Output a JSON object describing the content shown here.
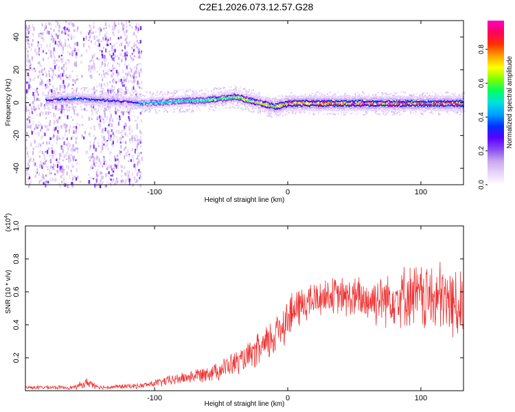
{
  "title": "C2E1.2026.073.12.57.G28",
  "chart_data": [
    {
      "type": "heatmap",
      "xlabel": "Height of straight line (km)",
      "ylabel": "Frequency (Hz)",
      "xlim": [
        -197,
        132
      ],
      "ylim": [
        -50,
        50
      ],
      "xticks": [
        -100,
        0,
        100
      ],
      "yticks": [
        -40,
        -20,
        0,
        20,
        40
      ],
      "colorbar": {
        "label": "Normalized spectral amplitude",
        "range": [
          0,
          0.97
        ],
        "ticks": [
          0.0,
          0.2,
          0.4,
          0.6,
          0.8
        ],
        "tick_labels": [
          "0.0",
          "0.2",
          "0.4",
          "0.6",
          "0.8"
        ],
        "colors": [
          "#ffffff",
          "#e8d4f8",
          "#c9a8f0",
          "#8a4cf0",
          "#5a00ff",
          "#0030ff",
          "#00a0ff",
          "#00e0e0",
          "#00ff60",
          "#80ff00",
          "#ffff00",
          "#ffa000",
          "#ff3000",
          "#ff0060",
          "#ff00c0"
        ]
      },
      "features": {
        "noise_region": {
          "x_from": -197,
          "x_to": -110,
          "max_amplitude": 0.3
        },
        "gap": {
          "x_from": -158,
          "x_to": -150
        },
        "center_line": [
          {
            "x": -180,
            "f": 2,
            "amp": 0.35
          },
          {
            "x": -160,
            "f": 3,
            "amp": 0.4
          },
          {
            "x": -140,
            "f": 2,
            "amp": 0.35
          },
          {
            "x": -120,
            "f": 1,
            "amp": 0.3
          },
          {
            "x": -110,
            "f": 0,
            "amp": 0.45
          },
          {
            "x": -90,
            "f": 1,
            "amp": 0.55
          },
          {
            "x": -60,
            "f": 2,
            "amp": 0.6
          },
          {
            "x": -40,
            "f": 4,
            "amp": 0.65
          },
          {
            "x": -25,
            "f": 1,
            "amp": 0.7
          },
          {
            "x": -10,
            "f": -2,
            "amp": 0.75
          },
          {
            "x": 0,
            "f": 0,
            "amp": 0.85
          },
          {
            "x": 50,
            "f": 0,
            "amp": 0.9
          },
          {
            "x": 100,
            "f": 0,
            "amp": 0.92
          },
          {
            "x": 132,
            "f": 0,
            "amp": 0.9
          }
        ]
      }
    },
    {
      "type": "line",
      "series": [
        {
          "name": "SNR",
          "color": "#ee3333"
        }
      ],
      "xlabel": "Height of straight line (km)",
      "ylabel": "SNR (10 * v/v)",
      "scale_label": "(x10",
      "scale_exp": "4",
      "scale_close": ")",
      "xlim": [
        -197,
        132
      ],
      "ylim": [
        0,
        1.0
      ],
      "xticks": [
        -100,
        0,
        100
      ],
      "yticks": [
        0.2,
        0.4,
        0.6,
        0.8,
        1.0
      ],
      "envelope": [
        {
          "x": -197,
          "mean": 0.02,
          "spread": 0.01
        },
        {
          "x": -160,
          "mean": 0.02,
          "spread": 0.012
        },
        {
          "x": -150,
          "mean": 0.05,
          "spread": 0.03
        },
        {
          "x": -140,
          "mean": 0.02,
          "spread": 0.012
        },
        {
          "x": -110,
          "mean": 0.03,
          "spread": 0.015
        },
        {
          "x": -90,
          "mean": 0.06,
          "spread": 0.03
        },
        {
          "x": -70,
          "mean": 0.09,
          "spread": 0.04
        },
        {
          "x": -50,
          "mean": 0.13,
          "spread": 0.06
        },
        {
          "x": -30,
          "mean": 0.2,
          "spread": 0.08
        },
        {
          "x": -15,
          "mean": 0.28,
          "spread": 0.12
        },
        {
          "x": -5,
          "mean": 0.4,
          "spread": 0.14
        },
        {
          "x": 10,
          "mean": 0.52,
          "spread": 0.12
        },
        {
          "x": 30,
          "mean": 0.58,
          "spread": 0.1
        },
        {
          "x": 60,
          "mean": 0.55,
          "spread": 0.14
        },
        {
          "x": 90,
          "mean": 0.58,
          "spread": 0.18
        },
        {
          "x": 115,
          "mean": 0.55,
          "spread": 0.22
        },
        {
          "x": 132,
          "mean": 0.52,
          "spread": 0.2
        }
      ]
    }
  ]
}
